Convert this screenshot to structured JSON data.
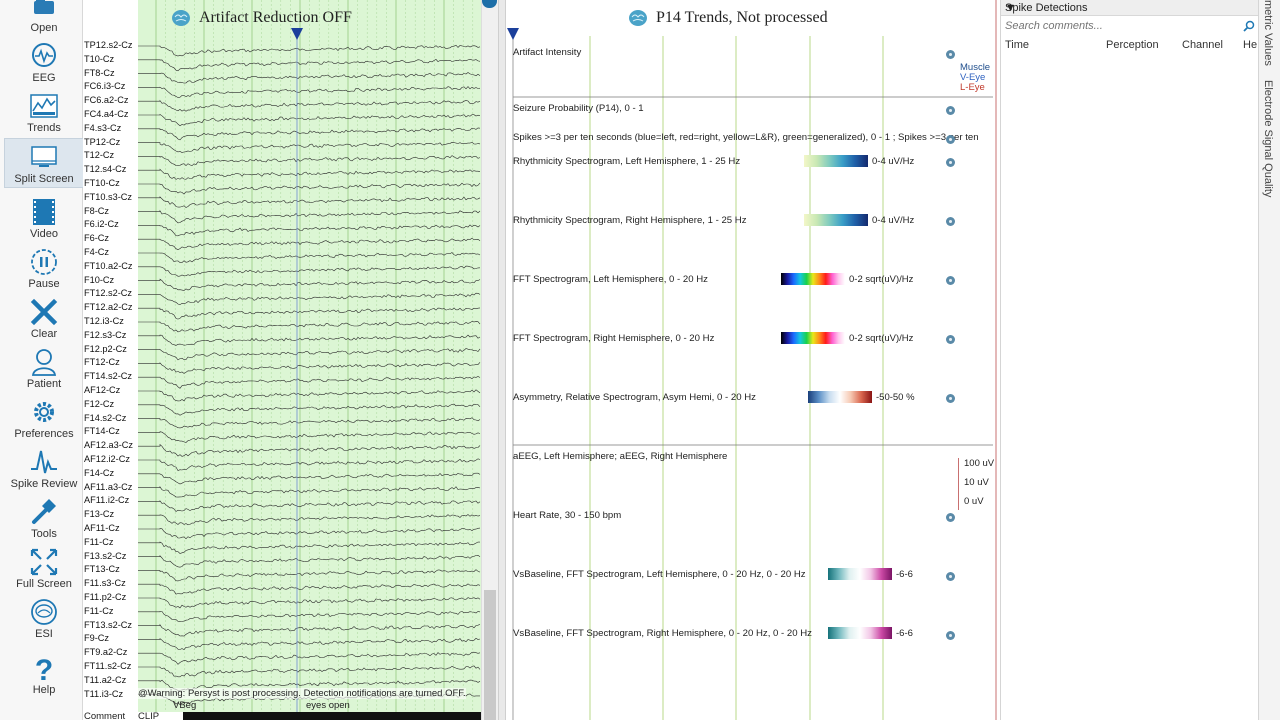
{
  "toolbar": {
    "items": [
      {
        "label": "Open",
        "icon": "folder-open-icon"
      },
      {
        "label": "EEG",
        "icon": "eeg-head-icon"
      },
      {
        "label": "Trends",
        "icon": "trends-icon"
      },
      {
        "label": "Split Screen",
        "icon": "split-screen-icon"
      },
      {
        "label": "Video",
        "icon": "video-icon"
      },
      {
        "label": "Pause",
        "icon": "pause-icon"
      },
      {
        "label": "Clear",
        "icon": "clear-x-icon"
      },
      {
        "label": "Patient",
        "icon": "patient-icon"
      },
      {
        "label": "Preferences",
        "icon": "gear-icon"
      },
      {
        "label": "Spike Review",
        "icon": "spike-review-icon"
      },
      {
        "label": "Tools",
        "icon": "hammer-icon"
      },
      {
        "label": "Full Screen",
        "icon": "full-screen-icon"
      },
      {
        "label": "ESI",
        "icon": "esi-icon"
      },
      {
        "label": "Help",
        "icon": "help-icon"
      }
    ],
    "active": "Split Screen"
  },
  "eeg": {
    "title": "Artifact Reduction OFF",
    "channels": [
      "TP12.s2-Cz",
      "T10-Cz",
      "FT8-Cz",
      "FC6.i3-Cz",
      "FC6.a2-Cz",
      "FC4.a4-Cz",
      "F4.s3-Cz",
      "TP12-Cz",
      "T12-Cz",
      "T12.s4-Cz",
      "FT10-Cz",
      "FT10.s3-Cz",
      "F8-Cz",
      "F6.i2-Cz",
      "F6-Cz",
      "F4-Cz",
      "FT10.a2-Cz",
      "F10-Cz",
      "FT12.s2-Cz",
      "FT12.a2-Cz",
      "T12.i3-Cz",
      "F12.s3-Cz",
      "F12.p2-Cz",
      "FT12-Cz",
      "FT14.s2-Cz",
      "AF12-Cz",
      "F12-Cz",
      "F14.s2-Cz",
      "FT14-Cz",
      "AF12.a3-Cz",
      "AF12.i2-Cz",
      "F14-Cz",
      "AF11.a3-Cz",
      "AF11.i2-Cz",
      "F13-Cz",
      "AF11-Cz",
      "F11-Cz",
      "F13.s2-Cz",
      "FT13-Cz",
      "F11.s3-Cz",
      "F11.p2-Cz",
      "F11-Cz",
      "FT13.s2-Cz",
      "F9-Cz",
      "FT9.a2-Cz",
      "FT11.s2-Cz",
      "T11.a2-Cz",
      "T11.i3-Cz"
    ],
    "warning": "@Warning: Persyst is post processing. Detection notifications are turned OFF.",
    "annotation_vbeg": "VBeg",
    "annotation_eyes": "eyes open",
    "comment_label": "Comment",
    "clip_label": "CLIP"
  },
  "trends": {
    "title": "P14 Trends, Not processed",
    "rows": [
      {
        "label": "Artifact Intensity",
        "scale": ""
      },
      {
        "label": "Seizure Probability (P14), 0 - 1",
        "scale": ""
      },
      {
        "label": "Spikes >=3 per ten seconds (blue=left, red=right, yellow=L&R), green=generalized), 0 - 1 ; Spikes >=3 per ten",
        "scale": ""
      },
      {
        "label": "Rhythmicity Spectrogram, Left Hemisphere, 1 - 25 Hz",
        "scale": "0-4 uV/Hz"
      },
      {
        "label": "Rhythmicity Spectrogram, Right Hemisphere, 1 - 25 Hz",
        "scale": "0-4 uV/Hz"
      },
      {
        "label": "FFT Spectrogram, Left Hemisphere, 0 - 20 Hz",
        "scale": "0-2 sqrt(uV)/Hz"
      },
      {
        "label": "FFT Spectrogram, Right Hemisphere, 0 - 20 Hz",
        "scale": "0-2 sqrt(uV)/Hz"
      },
      {
        "label": "Asymmetry, Relative Spectrogram, Asym Hemi, 0 - 20 Hz",
        "scale": "-50-50 %"
      },
      {
        "label": "aEEG, Left Hemisphere; aEEG, Right Hemisphere",
        "scale": ""
      },
      {
        "label": "Heart Rate, 30 - 150 bpm",
        "scale": ""
      },
      {
        "label": "VsBaseline, FFT Spectrogram, Left Hemisphere, 0 - 20 Hz, 0 - 20 Hz",
        "scale": "-6-6"
      },
      {
        "label": "VsBaseline, FFT Spectrogram, Right Hemisphere, 0 - 20 Hz, 0 - 20 Hz",
        "scale": "-6-6"
      }
    ],
    "artifact_legend": [
      {
        "label": "Muscle",
        "color": "#1f4e8c"
      },
      {
        "label": "V-Eye",
        "color": "#2f62c0"
      },
      {
        "label": "L-Eye",
        "color": "#c0392b"
      }
    ],
    "aeeg_scale": [
      "100 uV",
      "10 uV",
      "0 uV"
    ]
  },
  "spikes": {
    "title": "Spike Detections",
    "search_placeholder": "Search comments...",
    "columns": [
      "Time",
      "Perception",
      "Channel",
      "He"
    ]
  },
  "side_tabs": [
    "metric Values",
    "Electrode Signal Quality"
  ],
  "colors": {
    "eeg_background": "#dcf6d4",
    "grid_line": "#9ccf8a",
    "cursor": "#1b3f9b",
    "trend_grid": "#b9d98a"
  }
}
